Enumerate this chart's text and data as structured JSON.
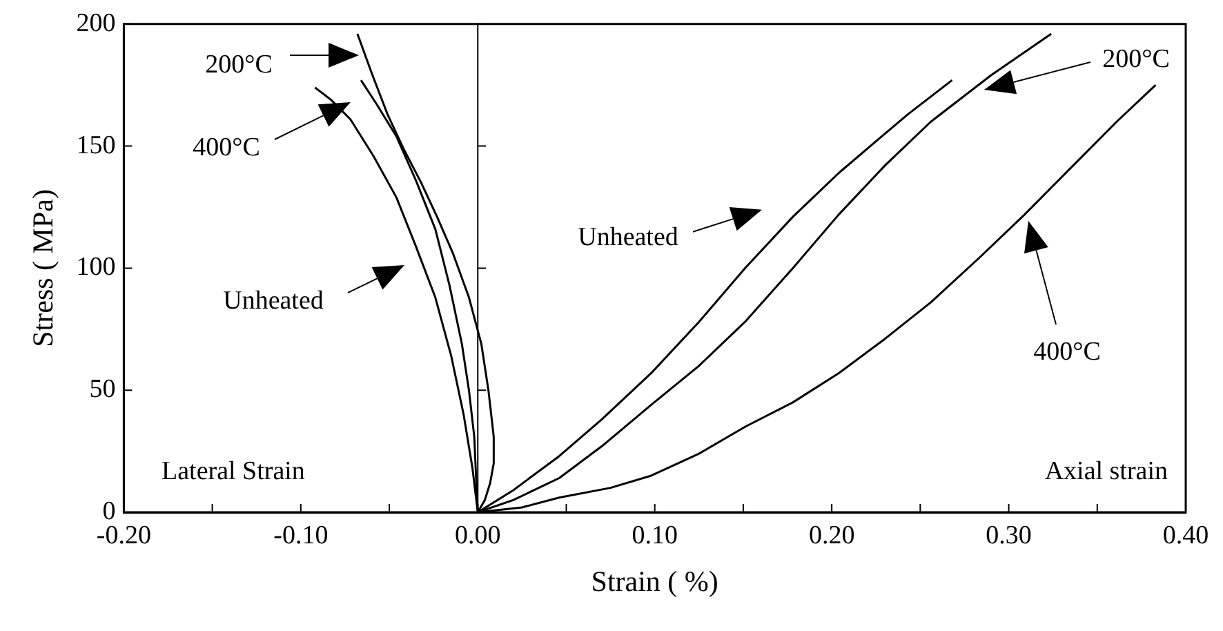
{
  "chart_data": {
    "type": "line",
    "xlabel": "Strain ( %)",
    "ylabel": "Stress ( MPa)",
    "xlim": [
      -0.2,
      0.4
    ],
    "xticks": [
      {
        "value": -0.2,
        "label": "-0.20"
      },
      {
        "value": -0.15,
        "label": null
      },
      {
        "value": -0.1,
        "label": "-0.10"
      },
      {
        "value": -0.05,
        "label": null
      },
      {
        "value": 0,
        "label": "0.00"
      },
      {
        "value": 0.05,
        "label": null
      },
      {
        "value": 0.1,
        "label": "0.10"
      },
      {
        "value": 0.15,
        "label": null
      },
      {
        "value": 0.2,
        "label": "0.20"
      },
      {
        "value": 0.25,
        "label": null
      },
      {
        "value": 0.3,
        "label": "0.30"
      },
      {
        "value": 0.35,
        "label": null
      },
      {
        "value": 0.4,
        "label": "0.40"
      }
    ],
    "ylim": [
      0,
      200
    ],
    "yticks": [
      0,
      50,
      100,
      150,
      200
    ],
    "grid": false,
    "legend": false,
    "marker": "none",
    "line_style": "solid",
    "ref_lines": [
      {
        "axis": "x",
        "value": 0,
        "color": "#000000"
      }
    ],
    "series": [
      {
        "color": "#000000",
        "x": [
          0,
          0.02,
          0.046,
          0.07,
          0.098,
          0.125,
          0.151,
          0.178,
          0.204,
          0.225,
          0.243,
          0.268
        ],
        "values": [
          0,
          9,
          23,
          38,
          57,
          78,
          100,
          121,
          139,
          152,
          163,
          177
        ]
      },
      {
        "color": "#000000",
        "x": [
          0,
          0.02,
          0.046,
          0.07,
          0.098,
          0.125,
          0.151,
          0.178,
          0.204,
          0.23,
          0.256,
          0.29,
          0.324
        ],
        "values": [
          0,
          5,
          14,
          27,
          44,
          60,
          78,
          100,
          122,
          142,
          160,
          179,
          196
        ]
      },
      {
        "color": "#000000",
        "x": [
          0,
          0.025,
          0.046,
          0.075,
          0.098,
          0.125,
          0.151,
          0.178,
          0.204,
          0.23,
          0.256,
          0.283,
          0.309,
          0.335,
          0.361,
          0.383
        ],
        "values": [
          0,
          2,
          6,
          10,
          15,
          24,
          35,
          45,
          57,
          71,
          86,
          104,
          122,
          141,
          160,
          175
        ]
      },
      {
        "color": "#000000",
        "x": [
          -0.068,
          -0.06,
          -0.051,
          -0.042,
          -0.032,
          -0.023,
          -0.014,
          -0.005,
          0.002,
          0.006,
          0.009,
          0.009,
          0.007,
          0.004,
          0
        ],
        "values": [
          196,
          180,
          163,
          149,
          135,
          121,
          106,
          88,
          69,
          50,
          31,
          20,
          12,
          5,
          0
        ]
      },
      {
        "color": "#000000",
        "x": [
          -0.066,
          -0.057,
          -0.046,
          -0.035,
          -0.024,
          -0.016,
          -0.009,
          -0.005,
          -0.002,
          -0.001,
          0
        ],
        "values": [
          177,
          167,
          154,
          136,
          116,
          93,
          69,
          50,
          31,
          15,
          0
        ]
      },
      {
        "color": "#000000",
        "x": [
          -0.092,
          -0.083,
          -0.072,
          -0.059,
          -0.046,
          -0.035,
          -0.024,
          -0.015,
          -0.008,
          -0.003,
          0
        ],
        "values": [
          174,
          169,
          161,
          146,
          129,
          109,
          88,
          64,
          40,
          18,
          0
        ]
      }
    ],
    "annotations": [
      "200°C",
      "400°C",
      "Unheated",
      "Unheated",
      "200°C",
      "400°C",
      "Lateral Strain",
      "Axial strain"
    ]
  }
}
